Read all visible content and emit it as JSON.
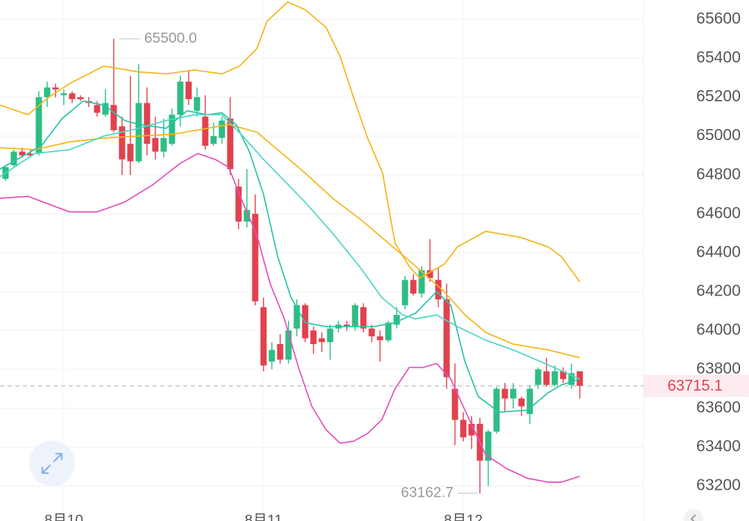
{
  "chart_data": {
    "type": "candlestick",
    "ylim": [
      63020,
      65700
    ],
    "yticks": [
      63200,
      63400,
      63600,
      63800,
      64000,
      64200,
      64400,
      64600,
      64800,
      65000,
      65200,
      65400,
      65600
    ],
    "grid": true,
    "up_color": "#2ebd85",
    "down_color": "#e0424e",
    "xtick_labels": [
      {
        "value": 7,
        "label": "8月10"
      },
      {
        "value": 31,
        "label": "8月11"
      },
      {
        "value": 55,
        "label": "8月12"
      }
    ],
    "open": [
      64780,
      64850,
      64920,
      64910,
      64910,
      65200,
      65250,
      65210,
      65220,
      65200,
      65180,
      65160,
      65110,
      65160,
      65050,
      64960,
      64870,
      65170,
      64990,
      64920,
      64960,
      65110,
      65280,
      65130,
      65100,
      64960,
      64990,
      65090,
      64740,
      64560,
      64600,
      64120,
      63840,
      63930,
      63850,
      64010,
      64130,
      64000,
      63960,
      63940,
      64010,
      64030,
      64020,
      64120,
      64010,
      63970,
      63950,
      64030,
      64130,
      64260,
      64190,
      64310,
      64260,
      64160,
      63700,
      63540,
      63520,
      63520,
      63330,
      63480,
      63700,
      63650,
      63650,
      63570,
      63720,
      63790,
      63720,
      63790,
      63720,
      63790
    ],
    "high": [
      64850,
      64930,
      64940,
      64930,
      65230,
      65280,
      65270,
      65240,
      65230,
      65210,
      65200,
      65180,
      65240,
      65500,
      65100,
      65310,
      65370,
      65250,
      65100,
      65090,
      65140,
      65310,
      65340,
      65250,
      65210,
      65070,
      65100,
      65200,
      64780,
      64830,
      64700,
      64170,
      63940,
      63980,
      64050,
      64160,
      64140,
      64020,
      63990,
      64030,
      64050,
      64050,
      64140,
      64140,
      64030,
      64000,
      64050,
      64120,
      64280,
      64290,
      64330,
      64470,
      64320,
      64240,
      63830,
      63580,
      63560,
      63550,
      63490,
      63710,
      63730,
      63730,
      63660,
      63720,
      63810,
      63860,
      63820,
      63810,
      63830,
      63790
    ],
    "low": [
      64770,
      64840,
      64890,
      64890,
      64900,
      65150,
      65200,
      65160,
      65170,
      65180,
      65150,
      65100,
      65100,
      65020,
      64800,
      64800,
      64860,
      64900,
      64880,
      64890,
      64950,
      65050,
      65160,
      65100,
      64930,
      64950,
      64960,
      64800,
      64520,
      64530,
      64130,
      63790,
      63800,
      63830,
      63830,
      63970,
      63940,
      63880,
      63890,
      63850,
      63990,
      64000,
      64000,
      63990,
      63940,
      63840,
      63940,
      64010,
      64110,
      64180,
      64170,
      64250,
      64120,
      63700,
      63410,
      63430,
      63390,
      63162.7,
      63200,
      63470,
      63580,
      63600,
      63560,
      63520,
      63700,
      63710,
      63710,
      63730,
      63700,
      63650
    ],
    "close": [
      64840,
      64920,
      64900,
      64900,
      65200,
      65250,
      65240,
      65220,
      65190,
      65190,
      65170,
      65120,
      65170,
      65030,
      64880,
      64870,
      65170,
      64960,
      64920,
      64990,
      65110,
      65280,
      65190,
      65200,
      64950,
      65000,
      65080,
      64830,
      64560,
      64620,
      64150,
      63820,
      63900,
      63850,
      64000,
      64130,
      63960,
      63930,
      63940,
      64010,
      64030,
      64020,
      64130,
      64010,
      63970,
      63950,
      64040,
      64080,
      64260,
      64190,
      64310,
      64270,
      64160,
      63760,
      63540,
      63450,
      63460,
      63330,
      63480,
      63700,
      63650,
      63700,
      63610,
      63700,
      63800,
      63720,
      63790,
      63750,
      63780,
      63715
    ],
    "lines": [
      {
        "color": "#f5b51c",
        "x": [
          -0.7,
          2.7,
          5.2,
          7.7,
          11.8,
          16,
          19.3,
          22.7,
          26,
          28.1,
          30.2,
          31.4,
          33.9,
          36,
          38.5,
          40.2,
          41.8,
          43.5,
          45.3,
          46.8,
          48.5,
          49.75,
          51,
          52.7,
          54.3,
          56,
          57.7,
          61.8,
          65.2,
          66.8,
          69
        ],
        "values": [
          65160,
          65110,
          65200,
          65270,
          65360,
          65330,
          65320,
          65340,
          65320,
          65360,
          65450,
          65590,
          65690,
          65650,
          65560,
          65410,
          65200,
          64990,
          64810,
          64450,
          64330,
          64270,
          64300,
          64340,
          64430,
          64470,
          64510,
          64480,
          64430,
          64380,
          64250
        ]
      },
      {
        "color": "#f5b51c",
        "x": [
          -0.7,
          3.5,
          7.7,
          11.8,
          16,
          20.2,
          24.3,
          26.8,
          30.2,
          32.7,
          36,
          39.3,
          42.7,
          46,
          49.3,
          52.7,
          55.2,
          57.7,
          61,
          65.2,
          69
        ],
        "values": [
          64940,
          64930,
          64970,
          64990,
          65000,
          65010,
          65040,
          65060,
          65020,
          64930,
          64810,
          64680,
          64570,
          64450,
          64330,
          64200,
          64080,
          63990,
          63930,
          63900,
          63860
        ]
      },
      {
        "color": "#e352b8",
        "x": [
          -0.7,
          2.7,
          5.2,
          7.7,
          11,
          14.3,
          17.7,
          21,
          23.1,
          25.2,
          26.8,
          28.5,
          30.2,
          31.8,
          33.5,
          35.2,
          36.8,
          38.5,
          40.2,
          41.8,
          43.5,
          45.2,
          46.8,
          48.5,
          50.2,
          51.8,
          53.5,
          55.2,
          57.7,
          60.2,
          62.7,
          65.2,
          66.8,
          69
        ],
        "values": [
          64680,
          64690,
          64650,
          64610,
          64610,
          64660,
          64750,
          64860,
          64910,
          64880,
          64840,
          64660,
          64490,
          64240,
          64060,
          63810,
          63610,
          63490,
          63420,
          63430,
          63470,
          63540,
          63700,
          63810,
          63810,
          63830,
          63750,
          63590,
          63360,
          63290,
          63240,
          63220,
          63220,
          63250
        ]
      },
      {
        "color": "#2bc3a8",
        "x": [
          -0.7,
          1.8,
          4.3,
          6.8,
          9.3,
          11.8,
          14.3,
          16,
          19.3,
          21.8,
          24.3,
          26,
          27.7,
          29.3,
          31,
          32.7,
          34.3,
          36,
          38.5,
          41,
          44.3,
          46.8,
          49.3,
          51.8,
          53.5,
          55.2,
          56.8,
          59.3,
          62.7,
          65.2,
          66.8,
          69
        ],
        "values": [
          64830,
          64890,
          64950,
          65090,
          65180,
          65160,
          65080,
          65060,
          65040,
          65130,
          65110,
          65120,
          65060,
          64920,
          64700,
          64380,
          64170,
          64040,
          64020,
          64020,
          64020,
          64040,
          64090,
          64200,
          64130,
          63840,
          63660,
          63580,
          63590,
          63680,
          63720,
          63750
        ]
      },
      {
        "color": "#4dd6c4",
        "x": [
          -0.7,
          3.5,
          7.7,
          11.8,
          16,
          19.3,
          22.7,
          26,
          28.5,
          31,
          33.5,
          36,
          39.3,
          42.7,
          45.2,
          47.7,
          49.3,
          51.8,
          54.3,
          57.7,
          61,
          64.3,
          69
        ],
        "values": [
          64790,
          64910,
          64930,
          65000,
          65040,
          65080,
          65110,
          65110,
          65000,
          64880,
          64770,
          64660,
          64500,
          64320,
          64170,
          64080,
          64060,
          64080,
          64020,
          63950,
          63900,
          63840,
          63750
        ]
      }
    ],
    "annotations": [
      {
        "index": 13,
        "value": 65500,
        "label": "65500.0"
      },
      {
        "index": 57,
        "value": 63162.7,
        "label": "63162.7"
      }
    ],
    "last_price": 63715.1
  }
}
